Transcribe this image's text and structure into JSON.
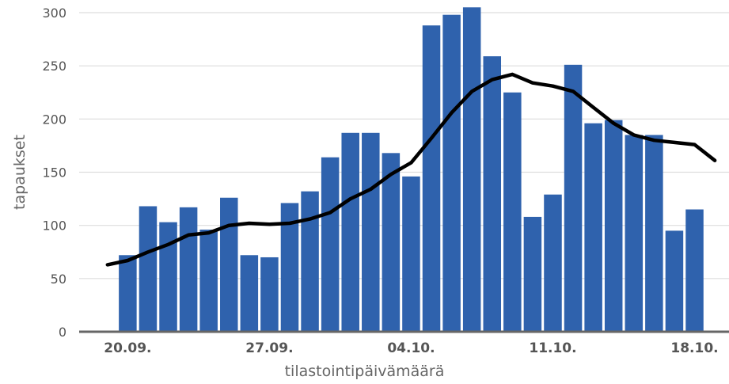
{
  "chart_data": {
    "type": "bar",
    "xlabel": "tilastointipäivämäärä",
    "ylabel": "tapaukset",
    "ylim": [
      0,
      300
    ],
    "yticks": [
      0,
      50,
      100,
      150,
      200,
      250,
      300
    ],
    "grid": true,
    "x_tick_labels": [
      "20.09.",
      "27.09.",
      "04.10.",
      "11.10.",
      "18.10."
    ],
    "x_tick_positions": [
      1,
      8,
      15,
      22,
      29
    ],
    "x_range": [
      -1.4,
      30.7
    ],
    "bar_color": "#2f62ad",
    "line_color": "#000000",
    "series": [
      {
        "type": "bar",
        "x": [
          1,
          2,
          3,
          4,
          5,
          6,
          7,
          8,
          9,
          10,
          11,
          12,
          13,
          14,
          15,
          16,
          17,
          18,
          19,
          20,
          21,
          22,
          23,
          24,
          25,
          26,
          27,
          28,
          29
        ],
        "values": [
          72,
          118,
          103,
          117,
          96,
          126,
          72,
          70,
          121,
          132,
          164,
          187,
          187,
          168,
          146,
          288,
          298,
          305,
          259,
          225,
          108,
          129,
          251,
          196,
          199,
          185,
          185,
          95,
          115
        ]
      },
      {
        "type": "line",
        "x": [
          0,
          1,
          2,
          3,
          4,
          5,
          6,
          7,
          8,
          9,
          10,
          11,
          12,
          13,
          14,
          15,
          16,
          17,
          18,
          19,
          20,
          21,
          22,
          23,
          24,
          25,
          26,
          27,
          28,
          29,
          30
        ],
        "values": [
          63,
          67,
          75,
          82,
          91,
          93,
          100,
          102,
          101,
          102,
          106,
          112,
          125,
          134,
          148,
          159,
          182,
          206,
          226,
          237,
          242,
          234,
          231,
          226,
          211,
          196,
          185,
          180,
          178,
          176,
          161
        ]
      }
    ]
  }
}
